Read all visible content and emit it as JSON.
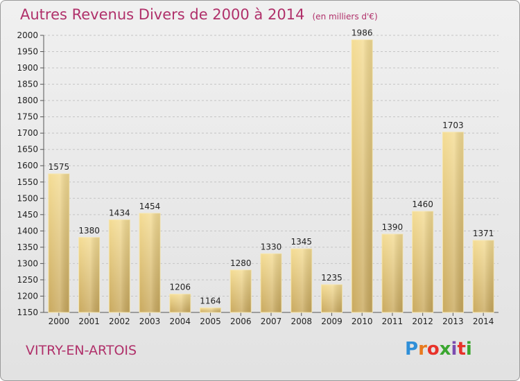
{
  "title": {
    "main": "Autres Revenus Divers de 2000 à 2014",
    "sub": "(en milliers d'€)"
  },
  "city": "VITRY-EN-ARTOIS",
  "logo": {
    "letters": [
      "P",
      "r",
      "o",
      "x",
      "i",
      "t",
      "i"
    ],
    "colors": [
      "#2f8fd8",
      "#e87a1e",
      "#e8322a",
      "#3aa62f",
      "#7a4bb0",
      "#e8322a",
      "#3aa62f"
    ]
  },
  "chart_data": {
    "type": "bar",
    "categories": [
      "2000",
      "2001",
      "2002",
      "2003",
      "2004",
      "2005",
      "2006",
      "2007",
      "2008",
      "2009",
      "2010",
      "2011",
      "2012",
      "2013",
      "2014"
    ],
    "values": [
      1575,
      1380,
      1434,
      1454,
      1206,
      1164,
      1280,
      1330,
      1345,
      1235,
      1986,
      1390,
      1460,
      1703,
      1371
    ],
    "ylim": [
      1150,
      2000
    ],
    "yticks": [
      1150,
      1200,
      1250,
      1300,
      1350,
      1400,
      1450,
      1500,
      1550,
      1600,
      1650,
      1700,
      1750,
      1800,
      1850,
      1900,
      1950,
      2000
    ],
    "grid": true,
    "bar_color": "#e8cf85"
  }
}
